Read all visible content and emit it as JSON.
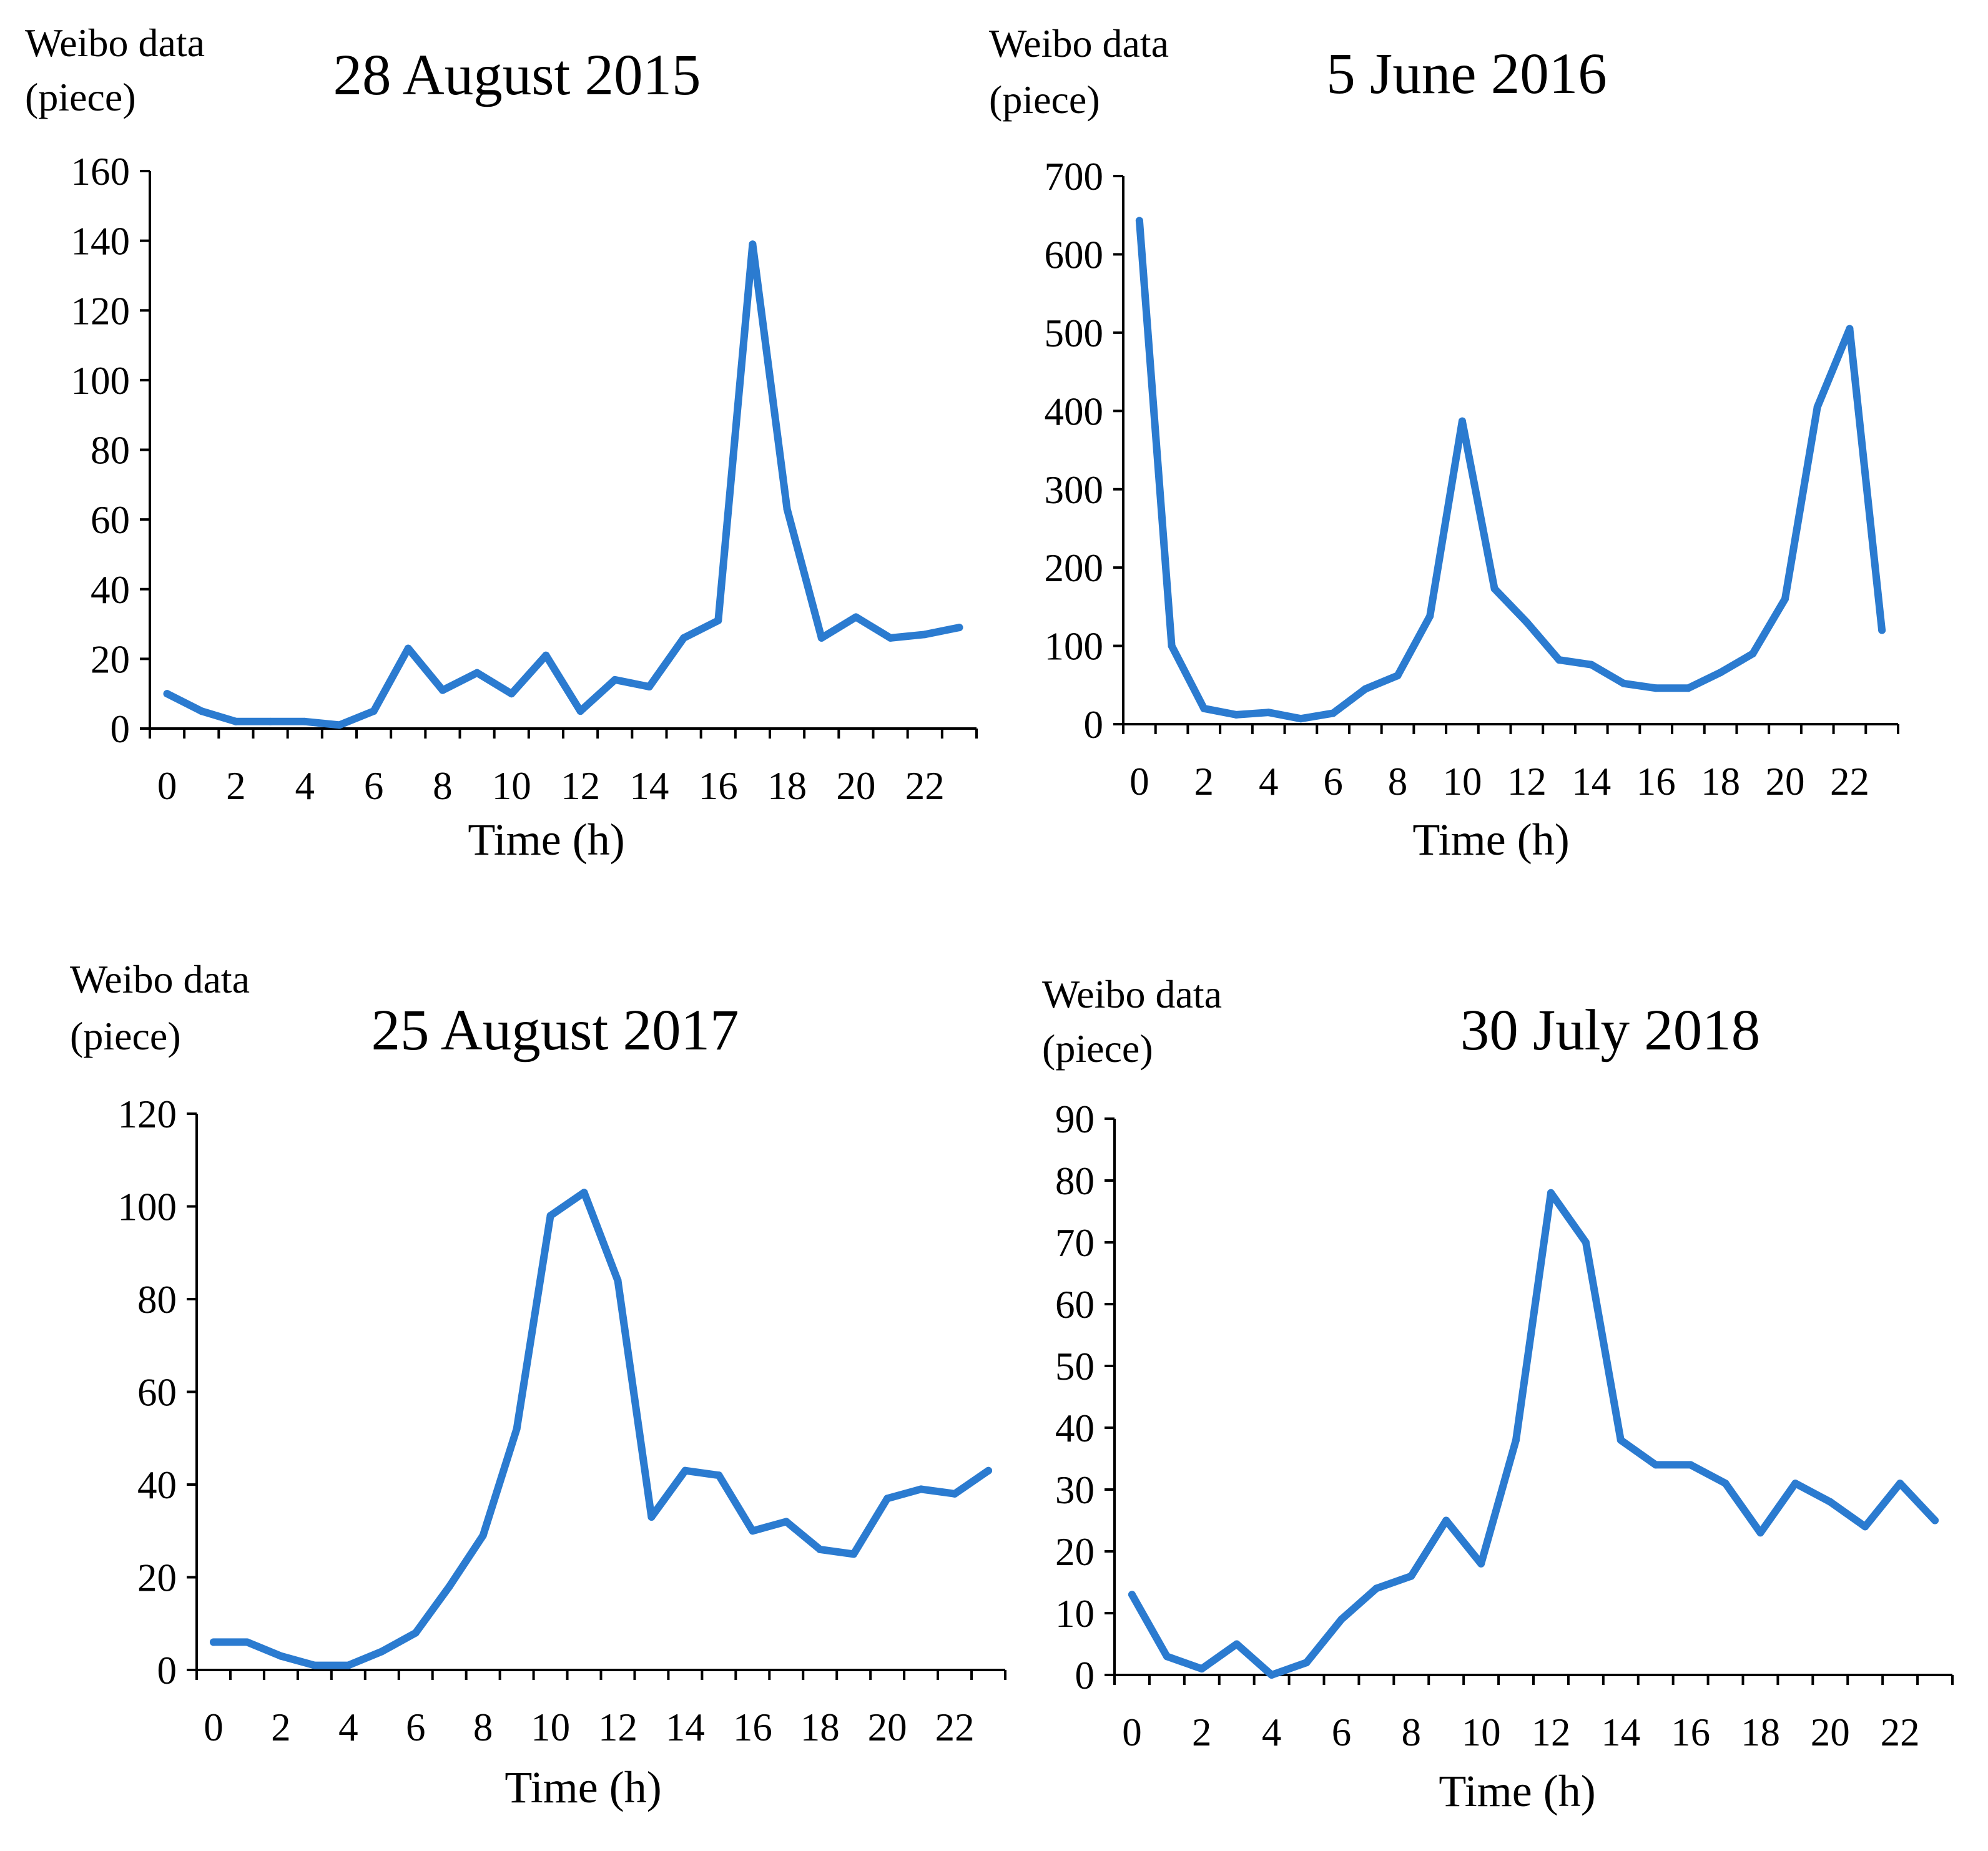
{
  "chart_data": [
    {
      "type": "line",
      "title": "28 August 2015",
      "ylabel_line1": "Weibo data",
      "ylabel_line2": "(piece)",
      "xlabel": "Time (h)",
      "x": [
        0,
        1,
        2,
        3,
        4,
        5,
        6,
        7,
        8,
        9,
        10,
        11,
        12,
        13,
        14,
        15,
        16,
        17,
        18,
        19,
        20,
        21,
        22,
        23
      ],
      "x_tick_labels": [
        "0",
        "2",
        "4",
        "6",
        "8",
        "10",
        "12",
        "14",
        "16",
        "18",
        "20",
        "22"
      ],
      "ylim": [
        0,
        160
      ],
      "y_ticks": [
        0,
        20,
        40,
        60,
        80,
        100,
        120,
        140,
        160
      ],
      "series": [
        {
          "name": "Weibo data",
          "color": "#2B7BD0",
          "values": [
            10,
            5,
            2,
            2,
            2,
            1,
            5,
            23,
            11,
            16,
            10,
            21,
            5,
            14,
            12,
            26,
            31,
            139,
            63,
            26,
            32,
            26,
            27,
            29
          ]
        }
      ]
    },
    {
      "type": "line",
      "title": "5 June 2016",
      "ylabel_line1": "Weibo data",
      "ylabel_line2": "(piece)",
      "xlabel": "Time (h)",
      "x": [
        0,
        1,
        2,
        3,
        4,
        5,
        6,
        7,
        8,
        9,
        10,
        11,
        12,
        13,
        14,
        15,
        16,
        17,
        18,
        19,
        20,
        21,
        22,
        23
      ],
      "x_tick_labels": [
        "0",
        "2",
        "4",
        "6",
        "8",
        "10",
        "12",
        "14",
        "16",
        "18",
        "20",
        "22"
      ],
      "ylim": [
        0,
        700
      ],
      "y_ticks": [
        0,
        100,
        200,
        300,
        400,
        500,
        600,
        700
      ],
      "series": [
        {
          "name": "Weibo data",
          "color": "#2B7BD0",
          "values": [
            643,
            100,
            20,
            12,
            15,
            7,
            14,
            45,
            62,
            138,
            387,
            173,
            130,
            82,
            76,
            52,
            46,
            46,
            66,
            90,
            160,
            405,
            505,
            120
          ]
        }
      ]
    },
    {
      "type": "line",
      "title": "25 August 2017",
      "ylabel_line1": "Weibo data",
      "ylabel_line2": "(piece)",
      "xlabel": "Time (h)",
      "x": [
        0,
        1,
        2,
        3,
        4,
        5,
        6,
        7,
        8,
        9,
        10,
        11,
        12,
        13,
        14,
        15,
        16,
        17,
        18,
        19,
        20,
        21,
        22,
        23
      ],
      "x_tick_labels": [
        "0",
        "2",
        "4",
        "6",
        "8",
        "10",
        "12",
        "14",
        "16",
        "18",
        "20",
        "22"
      ],
      "ylim": [
        0,
        120
      ],
      "y_ticks": [
        0,
        20,
        40,
        60,
        80,
        100,
        120
      ],
      "series": [
        {
          "name": "Weibo data",
          "color": "#2B7BD0",
          "values": [
            6,
            6,
            3,
            1,
            1,
            4,
            8,
            18,
            29,
            52,
            98,
            103,
            84,
            33,
            43,
            42,
            30,
            32,
            26,
            25,
            37,
            39,
            38,
            43
          ]
        }
      ]
    },
    {
      "type": "line",
      "title": "30 July 2018",
      "ylabel_line1": "Weibo data",
      "ylabel_line2": "(piece)",
      "xlabel": "Time (h)",
      "x": [
        0,
        1,
        2,
        3,
        4,
        5,
        6,
        7,
        8,
        9,
        10,
        11,
        12,
        13,
        14,
        15,
        16,
        17,
        18,
        19,
        20,
        21,
        22,
        23
      ],
      "x_tick_labels": [
        "0",
        "2",
        "4",
        "6",
        "8",
        "10",
        "12",
        "14",
        "16",
        "18",
        "20",
        "22"
      ],
      "ylim": [
        0,
        90
      ],
      "y_ticks": [
        0,
        10,
        20,
        30,
        40,
        50,
        60,
        70,
        80,
        90
      ],
      "series": [
        {
          "name": "Weibo data",
          "color": "#2B7BD0",
          "values": [
            13,
            3,
            1,
            5,
            0,
            2,
            9,
            14,
            16,
            25,
            18,
            38,
            78,
            70,
            38,
            34,
            34,
            31,
            23,
            31,
            28,
            24,
            31,
            25
          ]
        }
      ]
    }
  ]
}
